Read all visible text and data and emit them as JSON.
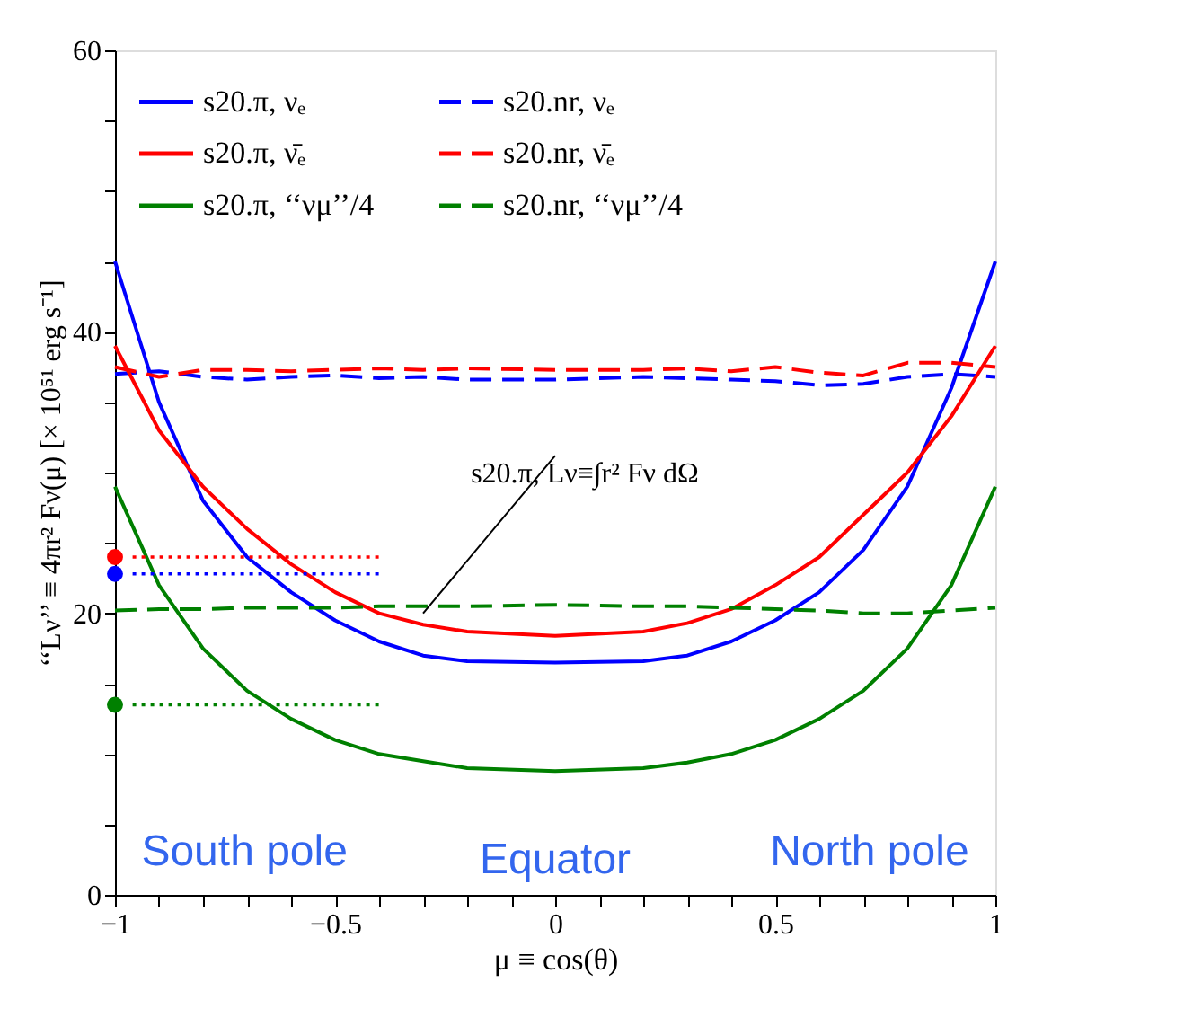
{
  "chart_data": {
    "type": "line",
    "xlabel": "μ ≡ cos(θ)",
    "ylabel": "‘‘Lν’’ ≡ 4πr² Fν(μ)  [× 10⁵¹ erg s⁻¹]",
    "xlim": [
      -1,
      1
    ],
    "ylim": [
      0,
      60
    ],
    "xticks": [
      {
        "value": -1,
        "label": "−1"
      },
      {
        "value": -0.9,
        "label": null
      },
      {
        "value": -0.8,
        "label": null
      },
      {
        "value": -0.7,
        "label": null
      },
      {
        "value": -0.6,
        "label": null
      },
      {
        "value": -0.5,
        "label": "−0.5"
      },
      {
        "value": -0.4,
        "label": null
      },
      {
        "value": -0.3,
        "label": null
      },
      {
        "value": -0.2,
        "label": null
      },
      {
        "value": -0.1,
        "label": null
      },
      0,
      {
        "value": 0.1,
        "label": null
      },
      {
        "value": 0.2,
        "label": null
      },
      {
        "value": 0.3,
        "label": null
      },
      {
        "value": 0.4,
        "label": null
      },
      0.5,
      {
        "value": 0.6,
        "label": null
      },
      {
        "value": 0.7,
        "label": null
      },
      {
        "value": 0.8,
        "label": null
      },
      {
        "value": 0.9,
        "label": null
      },
      1
    ],
    "yticks": [
      0,
      {
        "value": 5,
        "label": null
      },
      {
        "value": 10,
        "label": null
      },
      {
        "value": 15,
        "label": null
      },
      20,
      {
        "value": 25,
        "label": null
      },
      {
        "value": 30,
        "label": null
      },
      {
        "value": 35,
        "label": null
      },
      40,
      {
        "value": 45,
        "label": null
      },
      {
        "value": 50,
        "label": null
      },
      {
        "value": 55,
        "label": null
      },
      60
    ],
    "grid": false,
    "legend": "top",
    "marker": "none",
    "x": [
      -1,
      -0.9,
      -0.8,
      -0.7,
      -0.6,
      -0.5,
      -0.4,
      -0.3,
      -0.2,
      0,
      0.2,
      0.3,
      0.4,
      0.5,
      0.6,
      0.7,
      0.8,
      0.9,
      1
    ],
    "series": [
      {
        "name": "s20.π, νₑ",
        "color": "#0000ff",
        "line_style": "solid",
        "values": [
          45,
          35,
          28,
          24,
          21.5,
          19.5,
          18,
          17,
          16.6,
          16.5,
          16.6,
          17,
          18,
          19.5,
          21.5,
          24.5,
          29,
          36,
          45
        ]
      },
      {
        "name": "s20.nr, νₑ",
        "color": "#0000ff",
        "line_style": "dashed",
        "values": [
          37,
          37.2,
          36.8,
          36.6,
          36.8,
          36.9,
          36.7,
          36.8,
          36.6,
          36.6,
          36.8,
          36.7,
          36.6,
          36.5,
          36.2,
          36.3,
          36.8,
          37,
          36.8
        ]
      },
      {
        "name": "s20.π, ν̄ₑ",
        "color": "#ff0000",
        "line_style": "solid",
        "values": [
          39,
          33,
          29,
          26,
          23.5,
          21.5,
          20,
          19.2,
          18.7,
          18.4,
          18.7,
          19.3,
          20.3,
          22,
          24,
          27,
          30,
          34,
          39
        ]
      },
      {
        "name": "s20.nr, ν̄ₑ",
        "color": "#ff0000",
        "line_style": "dashed",
        "values": [
          37.5,
          36.8,
          37.3,
          37.3,
          37.2,
          37.3,
          37.4,
          37.3,
          37.4,
          37.3,
          37.3,
          37.4,
          37.2,
          37.5,
          37.1,
          36.9,
          37.8,
          37.8,
          37.5
        ]
      },
      {
        "name": "s20.π, ‘‘νμ’’/4",
        "color": "#008000",
        "line_style": "solid",
        "values": [
          29,
          22,
          17.5,
          14.5,
          12.5,
          11,
          10,
          9.5,
          9,
          8.8,
          9,
          9.4,
          10,
          11,
          12.5,
          14.5,
          17.5,
          22,
          29
        ]
      },
      {
        "name": "s20.nr, ‘‘νμ’’/4",
        "color": "#008000",
        "line_style": "dashed",
        "values": [
          20.2,
          20.3,
          20.3,
          20.4,
          20.4,
          20.4,
          20.5,
          20.5,
          20.5,
          20.6,
          20.5,
          20.5,
          20.4,
          20.3,
          20.2,
          20,
          20,
          20.2,
          20.4
        ]
      },
      {
        "type": "line",
        "line_style": "dotted",
        "color": "#ff0000",
        "x": [
          -0.96,
          -0.4
        ],
        "values": [
          24,
          24
        ]
      },
      {
        "type": "line",
        "line_style": "dotted",
        "color": "#0000ff",
        "x": [
          -0.96,
          -0.4
        ],
        "values": [
          22.8,
          22.8
        ]
      },
      {
        "type": "line",
        "line_style": "dotted",
        "color": "#008000",
        "x": [
          -0.96,
          -0.4
        ],
        "values": [
          13.5,
          13.5
        ]
      },
      {
        "type": "scatter",
        "marker": "circle",
        "color": "#ff0000",
        "x": [
          -1
        ],
        "values": [
          24
        ]
      },
      {
        "type": "scatter",
        "marker": "circle",
        "color": "#0000ff",
        "x": [
          -1
        ],
        "values": [
          22.8
        ]
      },
      {
        "type": "scatter",
        "marker": "circle",
        "color": "#008000",
        "x": [
          -1
        ],
        "values": [
          13.5
        ]
      }
    ],
    "annotations": [
      {
        "text": "s20.π, Lν≡∫r² Fν dΩ",
        "x": -0.3,
        "y": 20
      },
      "South pole",
      "Equator",
      "North pole"
    ]
  }
}
